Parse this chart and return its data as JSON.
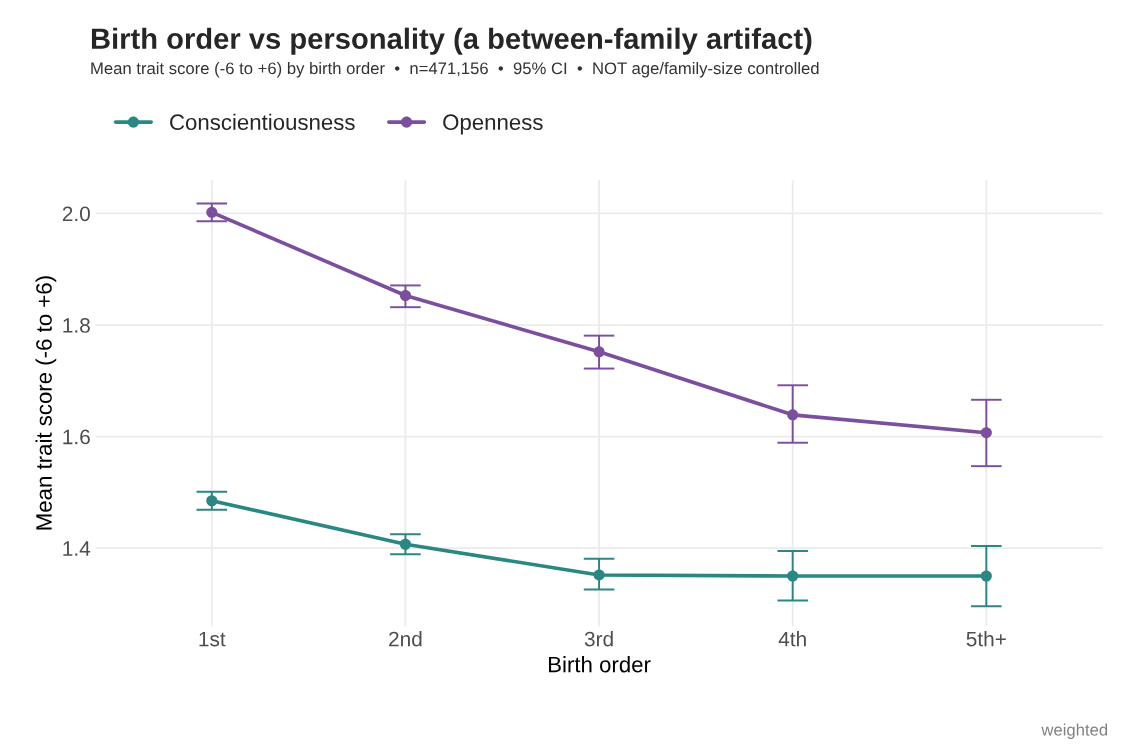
{
  "chart_data": {
    "type": "line",
    "title": "Birth order vs personality (a between-family artifact)",
    "subtitle": "Mean trait score (-6 to +6) by birth order  •  n=471,156  •  95% CI  •  NOT age/family-size controlled",
    "xlabel": "Birth order",
    "ylabel": "Mean trait score (-6 to +6)",
    "categories": [
      "1st",
      "2nd",
      "3rd",
      "4th",
      "5th+"
    ],
    "series": [
      {
        "name": "Conscientiousness",
        "color": "#2a8782",
        "values": [
          1.485,
          1.407,
          1.352,
          1.35,
          1.35
        ],
        "errors": [
          [
            1.469,
            1.501
          ],
          [
            1.389,
            1.425
          ],
          [
            1.326,
            1.381
          ],
          [
            1.306,
            1.395
          ],
          [
            1.296,
            1.404
          ]
        ]
      },
      {
        "name": "Openness",
        "color": "#7b4f9e",
        "values": [
          2.002,
          1.853,
          1.752,
          1.639,
          1.607
        ],
        "errors": [
          [
            1.986,
            2.018
          ],
          [
            1.832,
            1.871
          ],
          [
            1.722,
            1.781
          ],
          [
            1.589,
            1.692
          ],
          [
            1.547,
            1.666
          ]
        ]
      }
    ],
    "ylim": [
      1.26,
      2.06
    ],
    "yticks": [
      {
        "value": 1.4,
        "label": "1.4"
      },
      {
        "value": 1.6,
        "label": "1.6"
      },
      {
        "value": 1.8,
        "label": "1.8"
      },
      {
        "value": 2.0,
        "label": "2.0"
      }
    ],
    "grid": true,
    "legend": "top left",
    "marker": "circle",
    "line_style": "solid",
    "annotations": [
      "weighted"
    ]
  }
}
